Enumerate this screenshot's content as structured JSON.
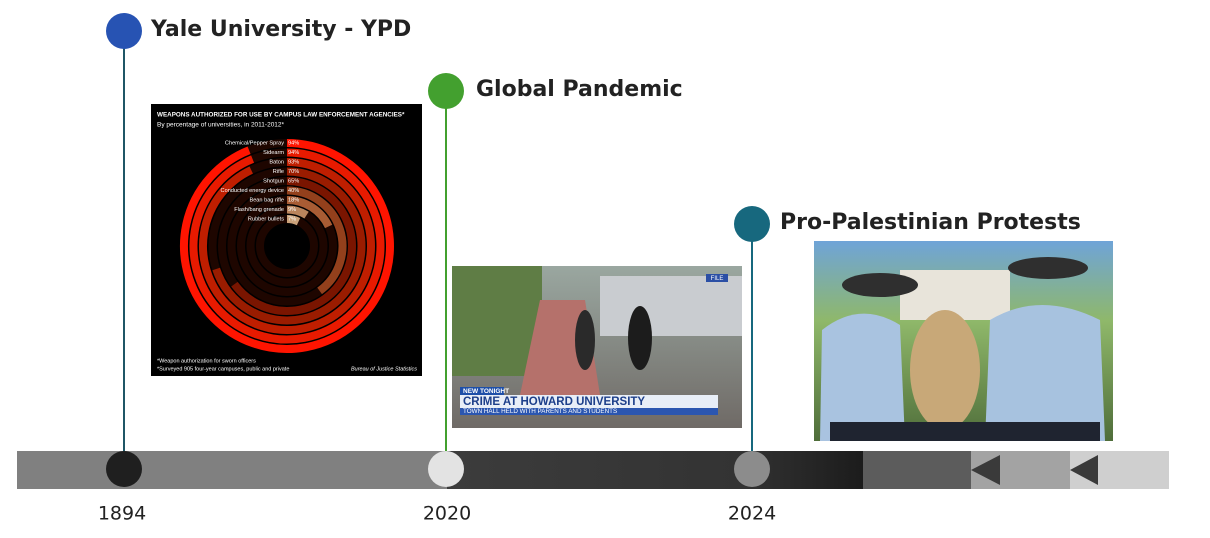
{
  "events": [
    {
      "title": "Yale University - YPD",
      "year": "1894"
    },
    {
      "title": "Global Pandemic",
      "year": "2020"
    },
    {
      "title": "Pro-Palestinian Protests",
      "year": "2024"
    }
  ],
  "weapons_chart": {
    "type": "radial-bar",
    "title": "WEAPONS AUTHORIZED FOR USE BY CAMPUS LAW ENFORCEMENT AGENCIES*",
    "subtitle": "By percentage of universities, in 2011-2012*",
    "categories": [
      "Chemical/Pepper Spray",
      "Sidearm",
      "Baton",
      "Rifle",
      "Shotgun",
      "Conducted energy device",
      "Bean bag rifle",
      "Flash/bang grenade",
      "Rubber bullets"
    ],
    "values": [
      94,
      94,
      93,
      70,
      65,
      40,
      18,
      9,
      7
    ],
    "value_labels": [
      "94%",
      "94%",
      "93%",
      "70%",
      "65%",
      "40%",
      "18%",
      "9%",
      "7%"
    ],
    "footnotes": [
      "*Weapon authorization for sworn officers",
      "*Surveyed 905 four-year campuses, public and private"
    ],
    "source": "Bureau of Justice Statistics"
  },
  "news_image": {
    "tag": "FILE",
    "kicker": "NEW TONIGHT",
    "headline": "CRIME AT HOWARD UNIVERSITY",
    "subhead": "TOWN HALL HELD WITH PARENTS AND STUDENTS"
  }
}
